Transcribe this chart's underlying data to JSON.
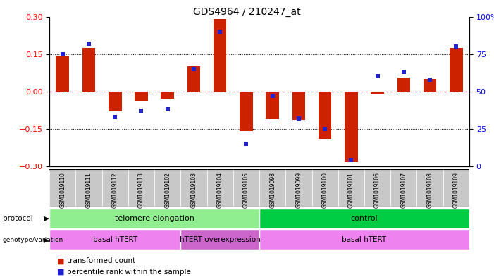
{
  "title": "GDS4964 / 210247_at",
  "samples": [
    "GSM1019110",
    "GSM1019111",
    "GSM1019112",
    "GSM1019113",
    "GSM1019102",
    "GSM1019103",
    "GSM1019104",
    "GSM1019105",
    "GSM1019098",
    "GSM1019099",
    "GSM1019100",
    "GSM1019101",
    "GSM1019106",
    "GSM1019107",
    "GSM1019108",
    "GSM1019109"
  ],
  "transformed_count": [
    0.14,
    0.175,
    -0.08,
    -0.04,
    -0.03,
    0.1,
    0.29,
    -0.16,
    -0.11,
    -0.115,
    -0.19,
    -0.285,
    -0.01,
    0.055,
    0.05,
    0.175
  ],
  "percentile_rank": [
    75,
    82,
    33,
    37,
    38,
    65,
    90,
    15,
    47,
    32,
    25,
    4,
    60,
    63,
    58,
    80
  ],
  "ylim_left": [
    -0.3,
    0.3
  ],
  "ylim_right": [
    0,
    100
  ],
  "yticks_left": [
    -0.3,
    -0.15,
    0,
    0.15,
    0.3
  ],
  "yticks_right": [
    0,
    25,
    50,
    75,
    100
  ],
  "hlines_dotted": [
    0.15,
    -0.15
  ],
  "protocol_groups": [
    {
      "label": "telomere elongation",
      "start": 0,
      "end": 8,
      "color": "#90EE90"
    },
    {
      "label": "control",
      "start": 8,
      "end": 16,
      "color": "#00CC44"
    }
  ],
  "genotype_groups": [
    {
      "label": "basal hTERT",
      "start": 0,
      "end": 5,
      "color": "#EE82EE"
    },
    {
      "label": "hTERT overexpression",
      "start": 5,
      "end": 8,
      "color": "#CC66CC"
    },
    {
      "label": "basal hTERT",
      "start": 8,
      "end": 16,
      "color": "#EE82EE"
    }
  ],
  "bar_color": "#CC2200",
  "dot_color": "#2222CC",
  "zero_line_color": "#CC0000",
  "bg_color": "#ffffff",
  "tick_bg": "#C8C8C8",
  "bar_width": 0.5
}
